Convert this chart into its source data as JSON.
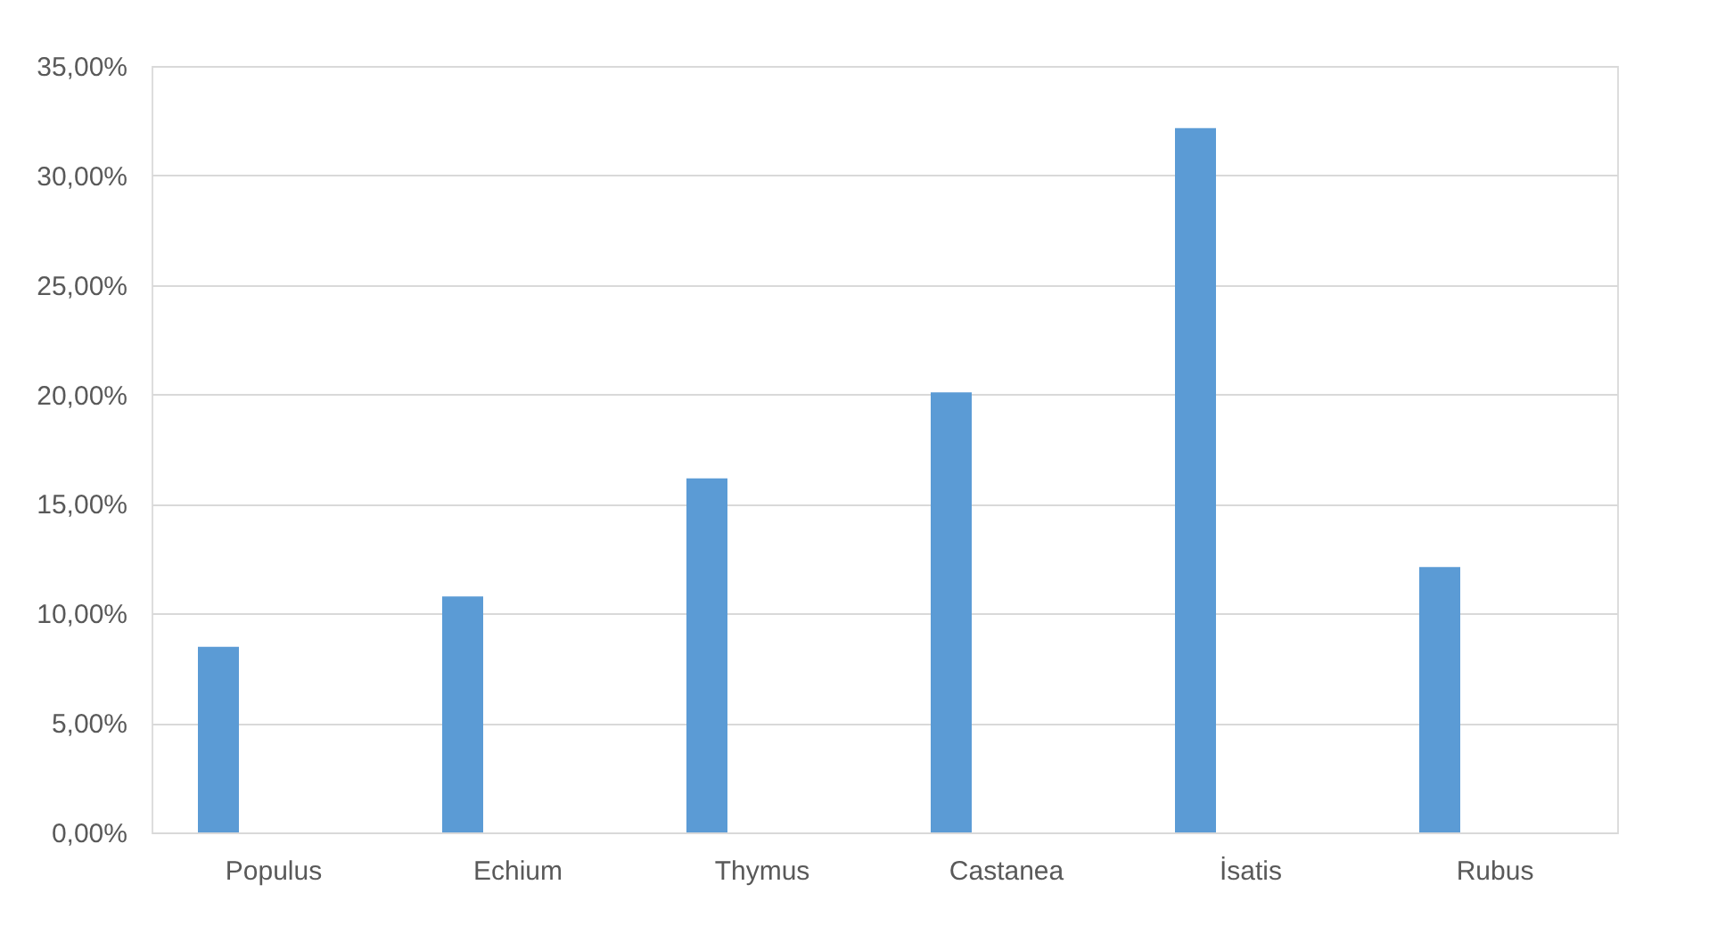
{
  "chart_data": {
    "type": "bar",
    "categories": [
      "Populus",
      "Echium",
      "Thymus",
      "Castanea",
      "İsatis",
      "Rubus"
    ],
    "values": [
      8.48,
      10.77,
      16.17,
      20.09,
      32.16,
      12.12
    ],
    "color": "#5b9bd5",
    "ylim": [
      0,
      35
    ],
    "yticks": [
      {
        "value": 0,
        "label": "0,00%"
      },
      {
        "value": 5,
        "label": "5,00%"
      },
      {
        "value": 10,
        "label": "10,00%"
      },
      {
        "value": 15,
        "label": "15,00%"
      },
      {
        "value": 20,
        "label": "20,00%"
      },
      {
        "value": 25,
        "label": "25,00%"
      },
      {
        "value": 30,
        "label": "30,00%"
      },
      {
        "value": 35,
        "label": "35,00%"
      }
    ],
    "grid": "y"
  }
}
